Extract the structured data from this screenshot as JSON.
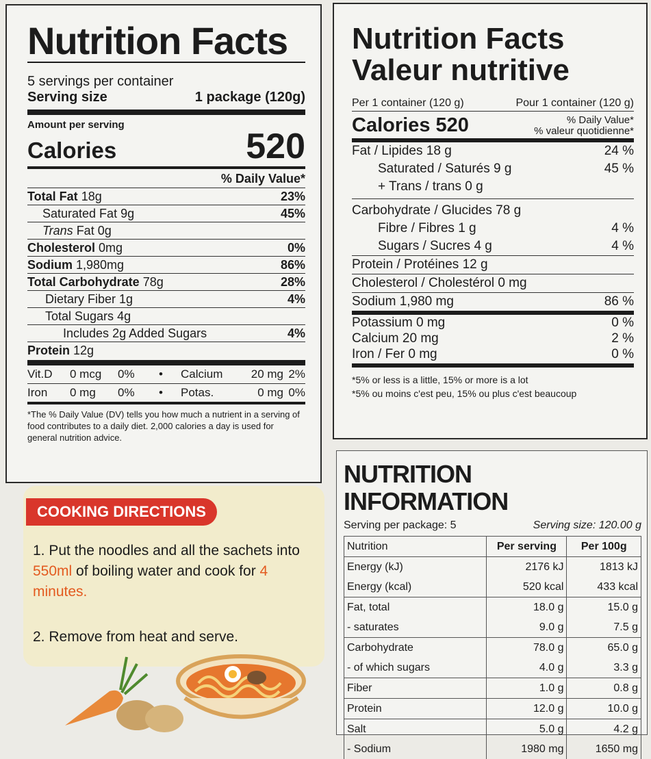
{
  "us_label": {
    "title": "Nutrition Facts",
    "servings": "5 servings per container",
    "serving_size_label": "Serving size",
    "serving_size_value": "1 package (120g)",
    "amount_per_serving": "Amount per serving",
    "calories_label": "Calories",
    "calories_value": "520",
    "dv_header": "% Daily Value*",
    "rows": [
      {
        "label": "Total Fat",
        "amount": "18g",
        "dv": "23%"
      },
      {
        "label": "Saturated Fat",
        "amount": "9g",
        "dv": "45%"
      },
      {
        "label": "Trans",
        "label2": " Fat",
        "amount": "0g",
        "dv": ""
      },
      {
        "label": "Cholesterol",
        "amount": "0mg",
        "dv": "0%"
      },
      {
        "label": "Sodium",
        "amount": "1,980mg",
        "dv": "86%"
      },
      {
        "label": "Total Carbohydrate",
        "amount": "78g",
        "dv": "28%"
      },
      {
        "label": "Dietary Fiber",
        "amount": "1g",
        "dv": "4%"
      },
      {
        "label": "Total Sugars",
        "amount": "4g",
        "dv": ""
      },
      {
        "label": "Includes",
        "amount": "2g Added Sugars",
        "dv": "4%"
      },
      {
        "label": "Protein",
        "amount": "12g",
        "dv": ""
      }
    ],
    "vitamins": [
      {
        "n1": "Vit.D",
        "a1": "0 mcg",
        "p1": "0%",
        "n2": "Calcium",
        "a2": "20 mg",
        "p2": "2%"
      },
      {
        "n1": "Iron",
        "a1": "0 mg",
        "p1": "0%",
        "n2": "Potas.",
        "a2": "0 mg",
        "p2": "0%"
      }
    ],
    "bullet": "•",
    "footnote": "*The % Daily Value (DV) tells you how much a nutrient in a serving of food contributes to a daily diet. 2,000 calories a day is used for general nutrition advice."
  },
  "ca_label": {
    "title_en": "Nutrition Facts",
    "title_fr": "Valeur nutritive",
    "per_en": "Per 1 container (120 g)",
    "per_fr": "Pour 1 container (120 g)",
    "calories": "Calories 520",
    "dv_en": "% Daily Value*",
    "dv_fr": "% valeur quotidienne*",
    "rows": [
      {
        "label": "Fat / Lipides 18 g",
        "dv": "24 %"
      },
      {
        "label": "Saturated / Saturés 9 g",
        "dv": "45 %"
      },
      {
        "label": "+ Trans / trans 0 g",
        "dv": ""
      },
      {
        "label": "Carbohydrate / Glucides 78 g",
        "dv": ""
      },
      {
        "label": "Fibre / Fibres 1 g",
        "dv": "4 %"
      },
      {
        "label": "Sugars / Sucres 4 g",
        "dv": "4 %"
      },
      {
        "label": "Protein / Protéines 12 g",
        "dv": ""
      },
      {
        "label": "Cholesterol / Cholestérol 0 mg",
        "dv": ""
      },
      {
        "label": "Sodium 1,980 mg",
        "dv": "86 %"
      },
      {
        "label": "Potassium 0 mg",
        "dv": "0 %"
      },
      {
        "label": "Calcium 20 mg",
        "dv": "2 %"
      },
      {
        "label": "Iron / Fer 0 mg",
        "dv": "0 %"
      }
    ],
    "footnote_en": "*5% or less is a little, 15% or more is a lot",
    "footnote_fr": "*5% ou moins c'est peu, 15% ou plus c'est beaucoup"
  },
  "info": {
    "title": "NUTRITION INFORMATION",
    "serving_per_package": "Serving per package: 5",
    "serving_size": "Serving size: 120.00 g",
    "headers": [
      "Nutrition",
      "Per serving",
      "Per 100g"
    ],
    "rows": [
      [
        "Energy (kJ)",
        "2176 kJ",
        "1813 kJ"
      ],
      [
        "Energy (kcal)",
        "520 kcal",
        "433 kcal"
      ],
      [
        "Fat, total",
        "18.0 g",
        "15.0 g"
      ],
      [
        "- saturates",
        "9.0 g",
        "7.5 g"
      ],
      [
        "Carbohydrate",
        "78.0 g",
        "65.0 g"
      ],
      [
        "- of which sugars",
        "4.0 g",
        "3.3 g"
      ],
      [
        "Fiber",
        "1.0 g",
        "0.8 g"
      ],
      [
        "Protein",
        "12.0 g",
        "10.0 g"
      ],
      [
        "Salt",
        "5.0 g",
        "4.2 g"
      ],
      [
        "- Sodium",
        "1980 mg",
        "1650 mg"
      ]
    ]
  },
  "cooking": {
    "title": "COOKING DIRECTIONS",
    "step1_a": "1. Put the noodles and all the sachets into ",
    "step1_water": "550ml",
    "step1_b": " of boiling water and cook for ",
    "step1_time": "4 minutes.",
    "step2": "2. Remove from heat and serve."
  },
  "colors": {
    "accent_red": "#d9362b",
    "highlight_orange": "#e35a1f",
    "panel_yellow": "#f2eccc"
  }
}
